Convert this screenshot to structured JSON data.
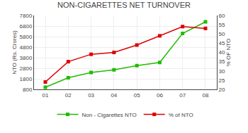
{
  "chart_data": {
    "type": "line",
    "title": "NON-CIGARETTES NET TURNOVER",
    "categories": [
      "01",
      "02",
      "03",
      "04",
      "05",
      "06",
      "07",
      "08"
    ],
    "series": [
      {
        "name": "Non - Cigarettes NTO",
        "color": "#22bb00",
        "marker": "square",
        "values": [
          1000,
          1900,
          2400,
          2650,
          3050,
          3350,
          6100,
          7200
        ]
      },
      {
        "name": "% of NTO",
        "color": "#dd0000",
        "marker": "square",
        "axis": "y2",
        "values": [
          24,
          35,
          39,
          40,
          44,
          49,
          54,
          53
        ]
      }
    ],
    "ylabel": "NTO (Rs. Crores)",
    "y2label": "% OF NTO",
    "ylim": [
      800,
      7800
    ],
    "yticks": [
      800,
      1800,
      2800,
      3800,
      4800,
      5800,
      6800,
      7800
    ],
    "y2lim": [
      20,
      60
    ],
    "y2ticks": [
      20,
      25,
      30,
      35,
      40,
      45,
      50,
      55,
      60
    ],
    "grid": true,
    "legend": "bottom"
  }
}
